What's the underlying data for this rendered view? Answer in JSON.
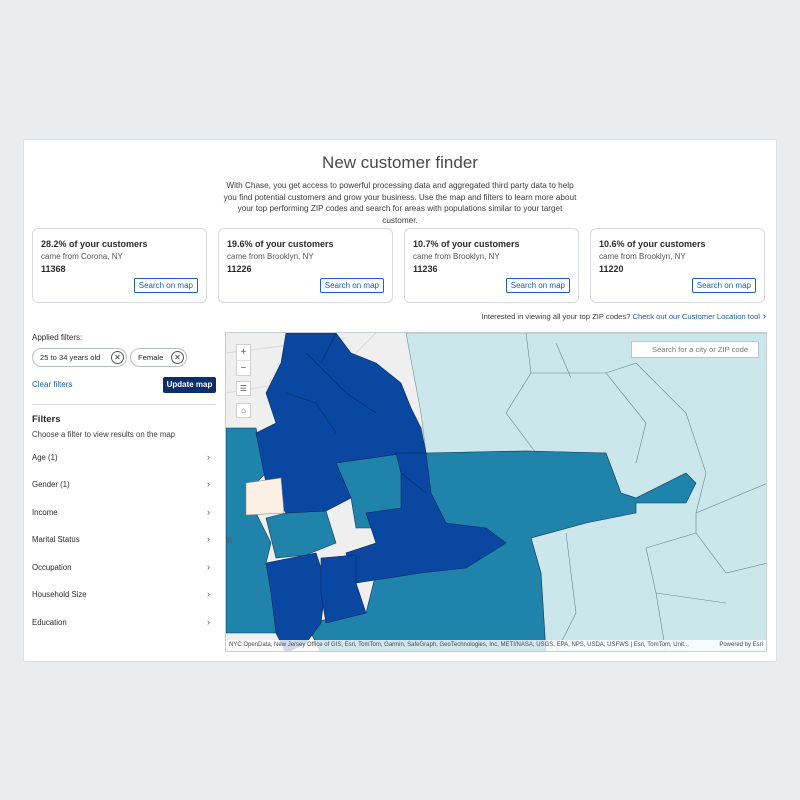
{
  "header": {
    "title": "New customer finder",
    "intro": "With Chase, you get access to powerful processing data and aggregated third party data to help you find potential customers and grow your business. Use the map and filters to learn more about your top performing ZIP codes and search for areas with populations similar to your target customer."
  },
  "cards": [
    {
      "pct": "28.2% of your customers",
      "from": "came from Corona, NY",
      "zip": "11368",
      "button": "Search on map"
    },
    {
      "pct": "19.6% of your customers",
      "from": "came from Brooklyn, NY",
      "zip": "11226",
      "button": "Search on map"
    },
    {
      "pct": "10.7% of your customers",
      "from": "came from Brooklyn, NY",
      "zip": "11236",
      "button": "Search on map"
    },
    {
      "pct": "10.6% of your customers",
      "from": "came from Brooklyn, NY",
      "zip": "11220",
      "button": "Search on map"
    }
  ],
  "interest": {
    "text": "Interested in viewing all your top ZIP codes?",
    "link": "Check out our Customer Location tool",
    "chevron": "›"
  },
  "sidebar": {
    "applied_label": "Applied filters:",
    "chips": [
      "25 to 34 years old",
      "Female"
    ],
    "chip_remove": "✕",
    "clear": "Clear filters",
    "update": "Update map",
    "filters_title": "Filters",
    "filters_sub": "Choose a filter to view results on the map",
    "items": [
      "Age (1)",
      "Gender (1)",
      "Income",
      "Marital Status",
      "Occupation",
      "Household Size",
      "Education"
    ]
  },
  "map": {
    "search_placeholder": "Search for a city or ZIP code",
    "zoom_in": "+",
    "zoom_out": "−",
    "attribution": "NYC OpenData, New Jersey Office of GIS, Esri, TomTom, Garmin, SafeGraph, GeoTechnologies, Inc, METI/NASA, USGS, EPA, NPS, USDA, USFWS | Esri, TomTom, Unit...",
    "powered_by": "Powered by Esri",
    "icons": {
      "layers": "list-icon",
      "home": "home-icon",
      "search": "search-icon"
    }
  },
  "colors": {
    "dark_blue": "#0a47a0",
    "mid_blue": "#1f83ab",
    "light_blue": "#cbe7ec",
    "cream": "#fbf0e3",
    "brand_navy": "#0c2e6b",
    "link_blue": "#1b5fae"
  }
}
